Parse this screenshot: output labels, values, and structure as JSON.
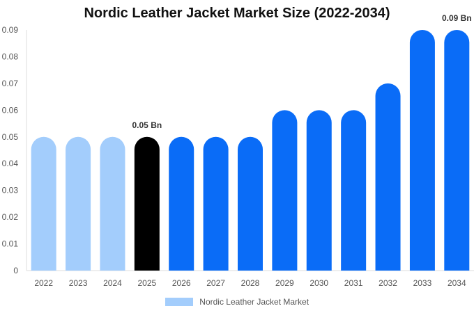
{
  "chart_data": {
    "type": "bar",
    "title": "Nordic Leather Jacket Market Size (2022-2034)",
    "xlabel": "",
    "ylabel": "",
    "categories": [
      "2022",
      "2023",
      "2024",
      "2025",
      "2026",
      "2027",
      "2028",
      "2029",
      "2030",
      "2031",
      "2032",
      "2033",
      "2034"
    ],
    "series": [
      {
        "name": "Nordic Leather Jacket Market",
        "values": [
          0.05,
          0.05,
          0.05,
          0.05,
          0.05,
          0.05,
          0.05,
          0.06,
          0.06,
          0.06,
          0.07,
          0.09,
          0.09
        ]
      }
    ],
    "ylim": [
      0,
      0.09
    ],
    "yticks": [
      "0",
      "0.01",
      "0.02",
      "0.03",
      "0.04",
      "0.05",
      "0.06",
      "0.07",
      "0.08",
      "0.09"
    ],
    "data_labels": [
      {
        "category": "2025",
        "text": "0.05 Bn"
      },
      {
        "category": "2034",
        "text": "0.09 Bn"
      }
    ],
    "colors": {
      "historical": "#a3cdfc",
      "current": "#000000",
      "forecast": "#0a6cf7",
      "legend": "#a3cdfc"
    },
    "grid": false,
    "legend_position": "bottom"
  }
}
